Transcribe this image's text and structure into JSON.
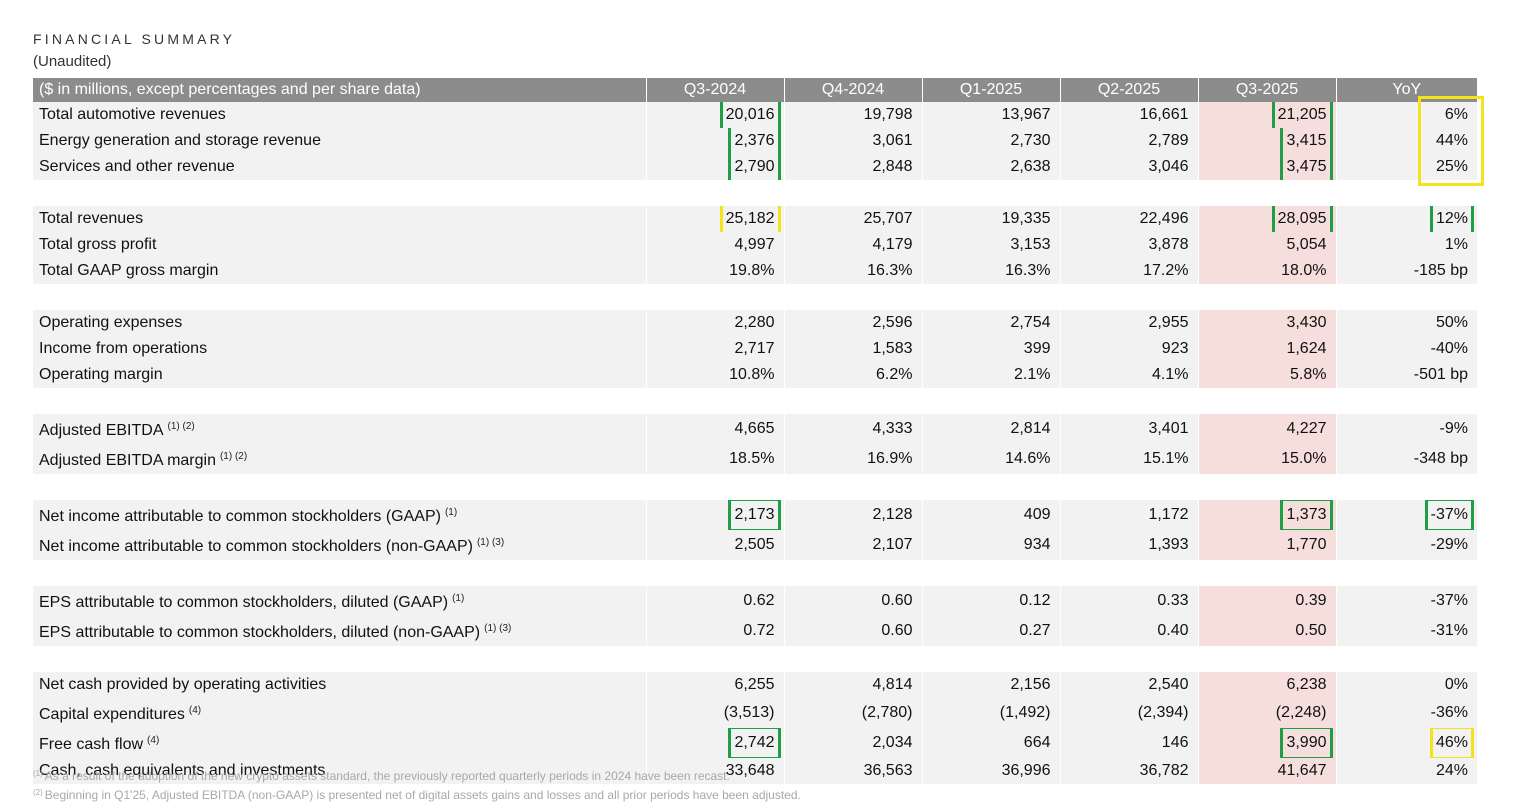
{
  "header": {
    "title": "FINANCIAL SUMMARY",
    "subtitle": "(Unaudited)"
  },
  "table": {
    "columns": [
      "($ in millions, except percentages and per share data)",
      "Q3-2024",
      "Q4-2024",
      "Q1-2025",
      "Q2-2025",
      "Q3-2025",
      "YoY"
    ],
    "groups": [
      [
        {
          "label": "Total automotive revenues",
          "fn": "",
          "values": [
            "20,016",
            "19,798",
            "13,967",
            "16,661",
            "21,205",
            "6%"
          ],
          "boxes": [
            "green",
            "",
            "",
            "",
            "green",
            ""
          ]
        },
        {
          "label": "Energy generation and storage revenue",
          "fn": "",
          "values": [
            "2,376",
            "3,061",
            "2,730",
            "2,789",
            "3,415",
            "44%"
          ],
          "boxes": [
            "green",
            "",
            "",
            "",
            "green",
            ""
          ]
        },
        {
          "label": "Services and other revenue",
          "fn": "",
          "values": [
            "2,790",
            "2,848",
            "2,638",
            "3,046",
            "3,475",
            "25%"
          ],
          "boxes": [
            "green",
            "",
            "",
            "",
            "green",
            ""
          ]
        }
      ],
      [
        {
          "label": "Total revenues",
          "fn": "",
          "values": [
            "25,182",
            "25,707",
            "19,335",
            "22,496",
            "28,095",
            "12%"
          ],
          "boxes": [
            "yellow",
            "",
            "",
            "",
            "green",
            "green"
          ]
        },
        {
          "label": "Total gross profit",
          "fn": "",
          "values": [
            "4,997",
            "4,179",
            "3,153",
            "3,878",
            "5,054",
            "1%"
          ],
          "boxes": [
            "",
            "",
            "",
            "",
            "",
            ""
          ]
        },
        {
          "label": "Total GAAP gross margin",
          "fn": "",
          "values": [
            "19.8%",
            "16.3%",
            "16.3%",
            "17.2%",
            "18.0%",
            "-185 bp"
          ],
          "boxes": [
            "",
            "",
            "",
            "",
            "",
            ""
          ]
        }
      ],
      [
        {
          "label": "Operating expenses",
          "fn": "",
          "values": [
            "2,280",
            "2,596",
            "2,754",
            "2,955",
            "3,430",
            "50%"
          ],
          "boxes": [
            "",
            "",
            "",
            "",
            "",
            ""
          ]
        },
        {
          "label": "Income from operations",
          "fn": "",
          "values": [
            "2,717",
            "1,583",
            "399",
            "923",
            "1,624",
            "-40%"
          ],
          "boxes": [
            "",
            "",
            "",
            "",
            "",
            ""
          ]
        },
        {
          "label": "Operating margin",
          "fn": "",
          "values": [
            "10.8%",
            "6.2%",
            "2.1%",
            "4.1%",
            "5.8%",
            "-501 bp"
          ],
          "boxes": [
            "",
            "",
            "",
            "",
            "",
            ""
          ]
        }
      ],
      [
        {
          "label": "Adjusted EBITDA",
          "fn": "(1) (2)",
          "values": [
            "4,665",
            "4,333",
            "2,814",
            "3,401",
            "4,227",
            "-9%"
          ],
          "boxes": [
            "",
            "",
            "",
            "",
            "",
            ""
          ]
        },
        {
          "label": "Adjusted EBITDA margin",
          "fn": "(1) (2)",
          "values": [
            "18.5%",
            "16.9%",
            "14.6%",
            "15.1%",
            "15.0%",
            "-348 bp"
          ],
          "boxes": [
            "",
            "",
            "",
            "",
            "",
            ""
          ]
        }
      ],
      [
        {
          "label": "Net income attributable to common stockholders (GAAP)",
          "fn": "(1)",
          "values": [
            "2,173",
            "2,128",
            "409",
            "1,172",
            "1,373",
            "-37%"
          ],
          "boxes": [
            "green",
            "",
            "",
            "",
            "green",
            "green"
          ]
        },
        {
          "label": "Net income attributable to common stockholders (non-GAAP)",
          "fn": "(1) (3)",
          "values": [
            "2,505",
            "2,107",
            "934",
            "1,393",
            "1,770",
            "-29%"
          ],
          "boxes": [
            "",
            "",
            "",
            "",
            "",
            ""
          ]
        }
      ],
      [
        {
          "label": "EPS attributable to common stockholders, diluted (GAAP)",
          "fn": "(1)",
          "values": [
            "0.62",
            "0.60",
            "0.12",
            "0.33",
            "0.39",
            "-37%"
          ],
          "boxes": [
            "",
            "",
            "",
            "",
            "",
            ""
          ]
        },
        {
          "label": "EPS attributable to common stockholders, diluted (non-GAAP)",
          "fn": "(1) (3)",
          "values": [
            "0.72",
            "0.60",
            "0.27",
            "0.40",
            "0.50",
            "-31%"
          ],
          "boxes": [
            "",
            "",
            "",
            "",
            "",
            ""
          ]
        }
      ],
      [
        {
          "label": "Net cash provided by operating activities",
          "fn": "",
          "values": [
            "6,255",
            "4,814",
            "2,156",
            "2,540",
            "6,238",
            "0%"
          ],
          "boxes": [
            "",
            "",
            "",
            "",
            "",
            ""
          ]
        },
        {
          "label": "Capital expenditures",
          "fn": "(4)",
          "values": [
            "(3,513)",
            "(2,780)",
            "(1,492)",
            "(2,394)",
            "(2,248)",
            "-36%"
          ],
          "boxes": [
            "",
            "",
            "",
            "",
            "",
            ""
          ]
        },
        {
          "label": "Free cash flow",
          "fn": "(4)",
          "values": [
            "2,742",
            "2,034",
            "664",
            "146",
            "3,990",
            "46%"
          ],
          "boxes": [
            "green",
            "",
            "",
            "",
            "green",
            "yellow"
          ]
        },
        {
          "label": "Cash, cash equivalents and investments",
          "fn": "",
          "values": [
            "33,648",
            "36,563",
            "36,996",
            "36,782",
            "41,647",
            "24%"
          ],
          "boxes": [
            "",
            "",
            "",
            "",
            "",
            ""
          ]
        }
      ]
    ]
  },
  "footnotes": [
    {
      "mark": "(1)",
      "text": "As a result of the adoption of the new crypto assets standard, the previously reported quarterly periods in 2024 have been recast."
    },
    {
      "mark": "(2)",
      "text": "Beginning in Q1'25, Adjusted EBITDA (non-GAAP) is presented net of digital assets gains and losses and all prior periods have been adjusted."
    }
  ]
}
